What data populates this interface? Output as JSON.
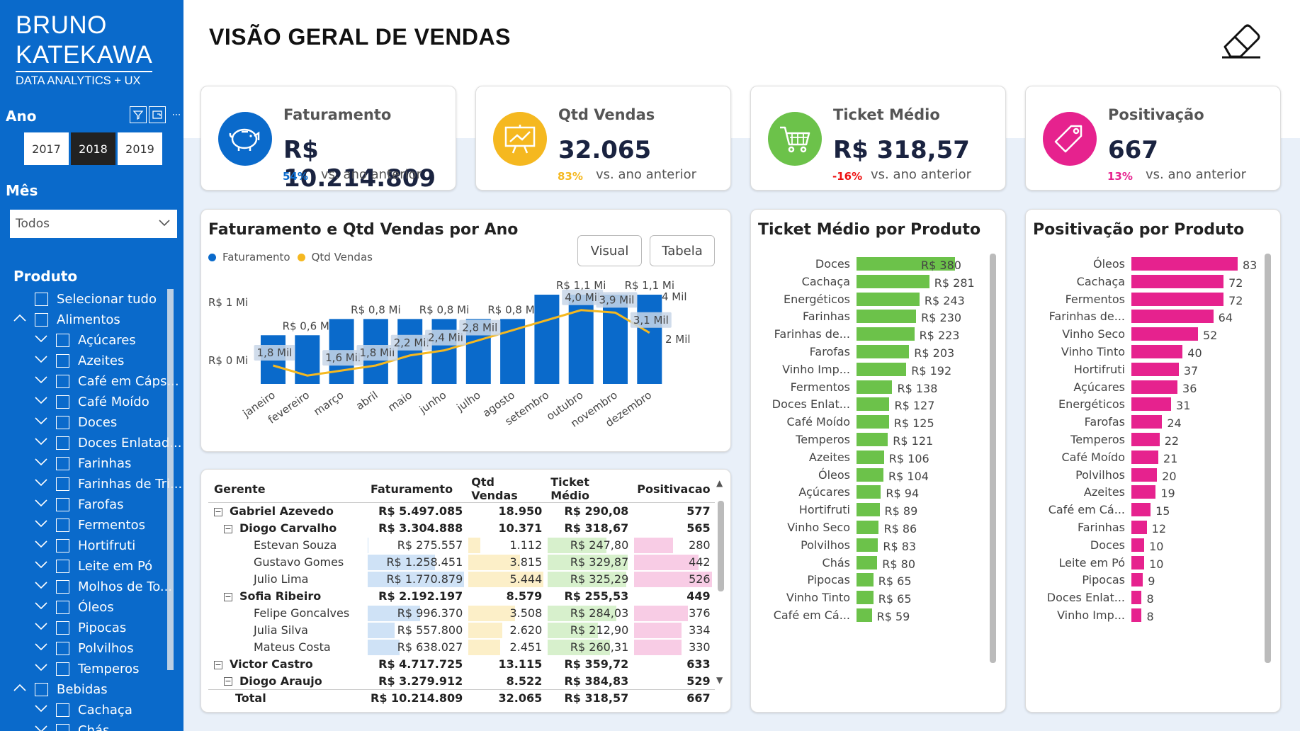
{
  "brand": {
    "line1": "BRUNO",
    "line2": "KATEKAWA",
    "tagline": "DATA ANALYTICS + UX"
  },
  "filters": {
    "ano_label": "Ano",
    "years": [
      "2017",
      "2018",
      "2019"
    ],
    "selected_year": "2018",
    "mes_label": "Mês",
    "mes_value": "Todos",
    "produto_label": "Produto",
    "produto_items": [
      {
        "label": "Selecionar tudo",
        "level": 0,
        "expander": ""
      },
      {
        "label": "Alimentos",
        "level": 0,
        "expander": "up"
      },
      {
        "label": "Açúcares",
        "level": 1,
        "expander": "down"
      },
      {
        "label": "Azeites",
        "level": 1,
        "expander": "down"
      },
      {
        "label": "Café em Cáps...",
        "level": 1,
        "expander": "down"
      },
      {
        "label": "Café Moído",
        "level": 1,
        "expander": "down"
      },
      {
        "label": "Doces",
        "level": 1,
        "expander": "down"
      },
      {
        "label": "Doces Enlatad...",
        "level": 1,
        "expander": "down"
      },
      {
        "label": "Farinhas",
        "level": 1,
        "expander": "down"
      },
      {
        "label": "Farinhas de Tri...",
        "level": 1,
        "expander": "down"
      },
      {
        "label": "Farofas",
        "level": 1,
        "expander": "down"
      },
      {
        "label": "Fermentos",
        "level": 1,
        "expander": "down"
      },
      {
        "label": "Hortifruti",
        "level": 1,
        "expander": "down"
      },
      {
        "label": "Leite em Pó",
        "level": 1,
        "expander": "down"
      },
      {
        "label": "Molhos de To...",
        "level": 1,
        "expander": "down"
      },
      {
        "label": "Óleos",
        "level": 1,
        "expander": "down"
      },
      {
        "label": "Pipocas",
        "level": 1,
        "expander": "down"
      },
      {
        "label": "Polvilhos",
        "level": 1,
        "expander": "down"
      },
      {
        "label": "Temperos",
        "level": 1,
        "expander": "down"
      },
      {
        "label": "Bebidas",
        "level": 0,
        "expander": "up"
      },
      {
        "label": "Cachaça",
        "level": 1,
        "expander": "down"
      },
      {
        "label": "Chás",
        "level": 1,
        "expander": "down"
      }
    ]
  },
  "page_title": "VISÃO GERAL DE VENDAS",
  "kpis": [
    {
      "label": "Faturamento",
      "value": "R$ 10.214.809",
      "pct": "54%",
      "vs": "vs. ano anterior",
      "color": "#0A6ACB",
      "icon": "piggy-bank-icon"
    },
    {
      "label": "Qtd Vendas",
      "value": "32.065",
      "pct": "83%",
      "vs": "vs. ano anterior",
      "color": "#F5B820",
      "icon": "chart-board-icon"
    },
    {
      "label": "Ticket Médio",
      "value": "R$ 318,57",
      "pct": "-16%",
      "vs": "vs. ano anterior",
      "color": "#6CC24A",
      "icon": "shopping-cart-icon"
    },
    {
      "label": "Positivação",
      "value": "667",
      "pct": "13%",
      "vs": "vs. ano anterior",
      "color": "#E6228E",
      "icon": "tag-icon"
    }
  ],
  "combo": {
    "title": "Faturamento e Qtd Vendas por Ano",
    "legend": [
      "Faturamento",
      "Qtd Vendas"
    ],
    "buttons": [
      "Visual",
      "Tabela"
    ],
    "y_left_ticks": [
      "R$ 1 Mi",
      "R$ 0 Mi"
    ],
    "y_right_ticks": [
      "4 Mil",
      "2 Mil"
    ]
  },
  "matrix": {
    "headers": [
      "Gerente",
      "Faturamento",
      "Qtd Vendas",
      "Ticket Médio",
      "Positivacao"
    ],
    "rows": [
      {
        "level": 1,
        "name": "Gabriel Azevedo",
        "fat": "R$ 5.497.085",
        "qtd": "18.950",
        "tkt": "R$ 290,08",
        "pos": "577"
      },
      {
        "level": 2,
        "name": "Diogo Carvalho",
        "fat": "R$ 3.304.888",
        "qtd": "10.371",
        "tkt": "R$ 318,67",
        "pos": "565"
      },
      {
        "level": 3,
        "name": "Estevan Souza",
        "fat": "R$ 275.557",
        "qtd": "1.112",
        "tkt": "R$ 247,80",
        "pos": "280",
        "b": [
          0.05,
          0.2,
          0.73,
          0.53
        ]
      },
      {
        "level": 3,
        "name": "Gustavo Gomes",
        "fat": "R$ 1.258.451",
        "qtd": "3.815",
        "tkt": "R$ 329,87",
        "pos": "442",
        "b": [
          0.71,
          0.7,
          0.97,
          0.84
        ]
      },
      {
        "level": 3,
        "name": "Julio Lima",
        "fat": "R$ 1.770.879",
        "qtd": "5.444",
        "tkt": "R$ 325,29",
        "pos": "526",
        "b": [
          1.0,
          1.0,
          0.96,
          1.0
        ]
      },
      {
        "level": 2,
        "name": "Sofia Ribeiro",
        "fat": "R$ 2.192.197",
        "qtd": "8.579",
        "tkt": "R$ 255,53",
        "pos": "449"
      },
      {
        "level": 3,
        "name": "Felipe Goncalves",
        "fat": "R$ 996.370",
        "qtd": "3.508",
        "tkt": "R$ 284,03",
        "pos": "376",
        "b": [
          0.56,
          0.64,
          0.84,
          0.71
        ]
      },
      {
        "level": 3,
        "name": "Julia Silva",
        "fat": "R$ 557.800",
        "qtd": "2.620",
        "tkt": "R$ 212,90",
        "pos": "334",
        "b": [
          0.31,
          0.48,
          0.63,
          0.63
        ]
      },
      {
        "level": 3,
        "name": "Mateus Costa",
        "fat": "R$ 638.027",
        "qtd": "2.451",
        "tkt": "R$ 260,31",
        "pos": "330",
        "b": [
          0.36,
          0.45,
          0.77,
          0.63
        ]
      },
      {
        "level": 1,
        "name": "Victor Castro",
        "fat": "R$ 4.717.725",
        "qtd": "13.115",
        "tkt": "R$ 359,72",
        "pos": "633"
      },
      {
        "level": 2,
        "name": "Diogo Araujo",
        "fat": "R$ 3.279.912",
        "qtd": "8.522",
        "tkt": "R$ 384,83",
        "pos": "529"
      }
    ],
    "total": {
      "name": "Total",
      "fat": "R$ 10.214.809",
      "qtd": "32.065",
      "tkt": "R$ 318,57",
      "pos": "667"
    }
  },
  "chart_data": [
    {
      "type": "bar",
      "title": "Faturamento e Qtd Vendas por Ano",
      "categories": [
        "janeiro",
        "fevereiro",
        "março",
        "abril",
        "maio",
        "junho",
        "julho",
        "agosto",
        "setembro",
        "outubro",
        "novembro",
        "dezembro"
      ],
      "series": [
        {
          "name": "Faturamento",
          "type": "bar",
          "color": "#0A6ACB",
          "values": [
            0.6,
            0.6,
            0.8,
            0.8,
            0.8,
            0.8,
            0.8,
            0.8,
            1.1,
            1.1,
            1.1,
            1.1
          ],
          "data_labels": [
            "",
            "R$ 0,6 Mi",
            "",
            "R$ 0,8 Mi",
            "",
            "R$ 0,8 Mi",
            "",
            "R$ 0,8 Mi",
            "",
            "R$ 1,1 Mi",
            "",
            "R$ 1,1 Mi"
          ]
        },
        {
          "name": "Qtd Vendas",
          "type": "line",
          "color": "#F5B820",
          "values": [
            1.8,
            1.4,
            1.6,
            1.8,
            2.2,
            2.4,
            2.8,
            3.2,
            3.6,
            4.0,
            3.9,
            3.1
          ],
          "data_labels": [
            "1,8 Mil",
            "",
            "1,6 Mil",
            "1,8 Mil",
            "2,2 Mil",
            "2,4 Mil",
            "2,8 Mil",
            "",
            "",
            "4,0 Mil",
            "3,9 Mil",
            "3,1 Mil"
          ]
        }
      ],
      "ylim_left": [
        0,
        1.1
      ],
      "ylim_right": [
        0,
        4.5
      ],
      "y_left_ticks": [
        "R$ 0 Mi",
        "R$ 1 Mi"
      ],
      "y_right_ticks": [
        "2 Mil",
        "4 Mil"
      ]
    },
    {
      "type": "bar",
      "orientation": "horizontal",
      "title": "Ticket Médio por Produto",
      "color": "#6CC24A",
      "categories": [
        "Doces",
        "Cachaça",
        "Energéticos",
        "Farinhas",
        "Farinhas de...",
        "Farofas",
        "Vinho Imp...",
        "Fermentos",
        "Doces Enlat...",
        "Café Moído",
        "Temperos",
        "Azeites",
        "Óleos",
        "Açúcares",
        "Hortifruti",
        "Vinho Seco",
        "Polvilhos",
        "Chás",
        "Pipocas",
        "Vinho Tinto",
        "Café em Cá..."
      ],
      "values": [
        380,
        281,
        243,
        230,
        223,
        203,
        192,
        138,
        127,
        125,
        121,
        106,
        104,
        94,
        89,
        86,
        83,
        80,
        65,
        65,
        59
      ],
      "labels": [
        "R$ 380",
        "R$ 281",
        "R$ 243",
        "R$ 230",
        "R$ 223",
        "R$ 203",
        "R$ 192",
        "R$ 138",
        "R$ 127",
        "R$ 125",
        "R$ 121",
        "R$ 106",
        "R$ 104",
        "R$ 94",
        "R$ 89",
        "R$ 86",
        "R$ 83",
        "R$ 80",
        "R$ 65",
        "R$ 65",
        "R$ 59"
      ]
    },
    {
      "type": "bar",
      "orientation": "horizontal",
      "title": "Positivação por Produto",
      "color": "#E6228E",
      "categories": [
        "Óleos",
        "Cachaça",
        "Fermentos",
        "Farinhas de...",
        "Vinho Seco",
        "Vinho Tinto",
        "Hortifruti",
        "Açúcares",
        "Energéticos",
        "Farofas",
        "Temperos",
        "Café Moído",
        "Polvilhos",
        "Azeites",
        "Café em Cá...",
        "Farinhas",
        "Doces",
        "Leite em Pó",
        "Pipocas",
        "Doces Enlat...",
        "Vinho Imp..."
      ],
      "values": [
        83,
        72,
        72,
        64,
        52,
        40,
        37,
        36,
        31,
        24,
        22,
        21,
        20,
        19,
        15,
        12,
        10,
        10,
        9,
        8,
        8
      ],
      "labels": [
        "83",
        "72",
        "72",
        "64",
        "52",
        "40",
        "37",
        "36",
        "31",
        "24",
        "22",
        "21",
        "20",
        "19",
        "15",
        "12",
        "10",
        "10",
        "9",
        "8",
        "8"
      ]
    }
  ]
}
